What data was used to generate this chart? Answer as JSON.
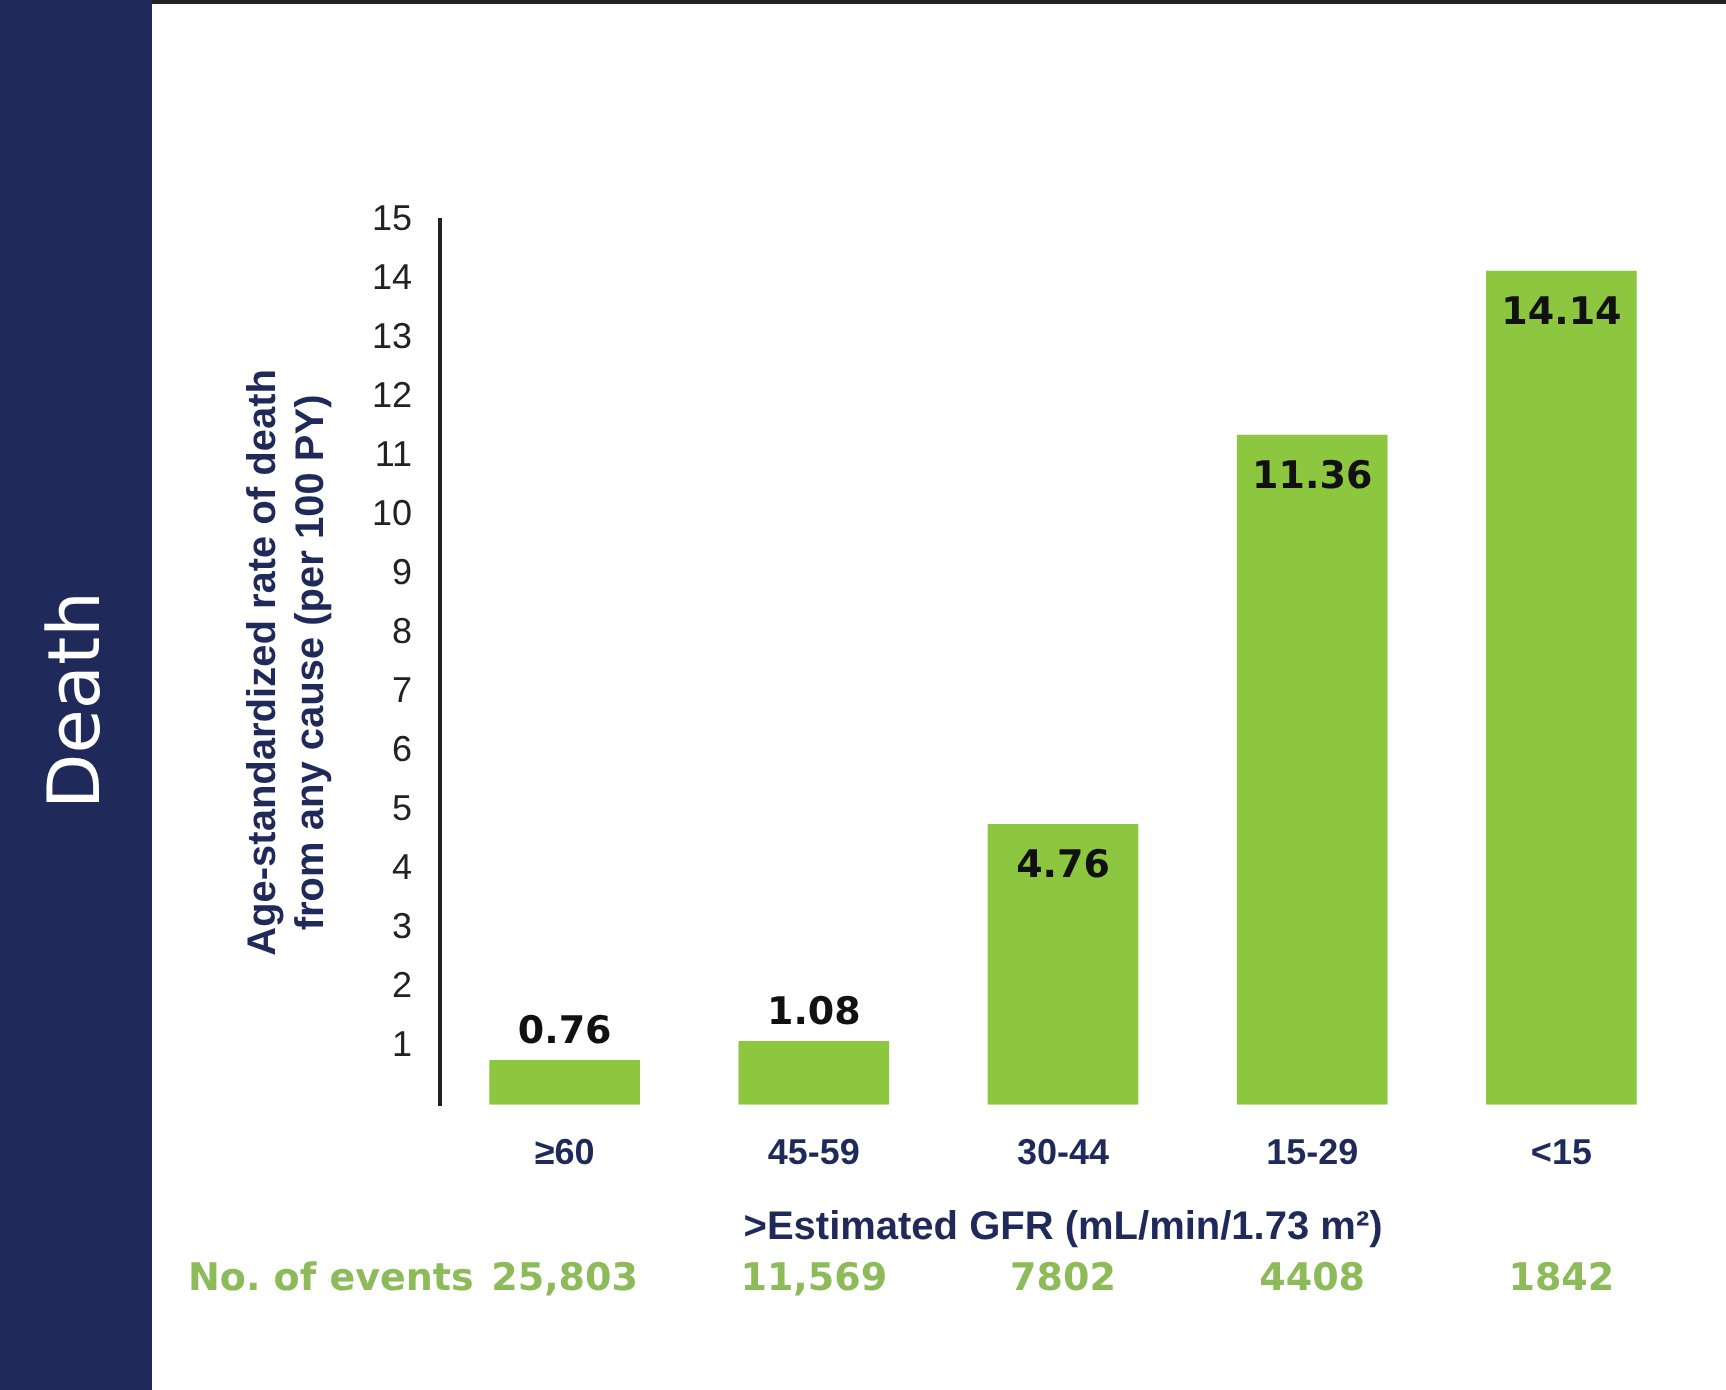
{
  "chart_data": {
    "type": "bar",
    "title": "Death",
    "categories": [
      "≥60",
      "45-59",
      "30-44",
      "15-29",
      "<15"
    ],
    "values": [
      0.76,
      1.08,
      4.76,
      11.36,
      14.14
    ],
    "color": "#8dc63f",
    "ylim": [
      0,
      15
    ],
    "yticks": [
      1,
      2,
      3,
      4,
      5,
      6,
      7,
      8,
      9,
      10,
      11,
      12,
      13,
      14,
      15
    ],
    "xlabel": ">Estimated GFR (mL/min/1.73 m²)",
    "ylabel": "Age-standardized rate of death from any cause (per 100 PY)",
    "data_labels": true,
    "grid": false,
    "legend": false,
    "annotations": [
      "No. of events",
      "25,803",
      "11,569",
      "7802",
      "4408",
      "1842"
    ]
  }
}
